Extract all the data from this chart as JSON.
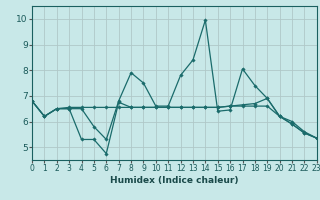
{
  "title": "",
  "xlabel": "Humidex (Indice chaleur)",
  "xlim": [
    0,
    23
  ],
  "ylim": [
    4.5,
    10.5
  ],
  "xticks": [
    0,
    1,
    2,
    3,
    4,
    5,
    6,
    7,
    8,
    9,
    10,
    11,
    12,
    13,
    14,
    15,
    16,
    17,
    18,
    19,
    20,
    21,
    22,
    23
  ],
  "yticks": [
    5,
    6,
    7,
    8,
    9,
    10
  ],
  "background_color": "#c8e8e8",
  "grid_color": "#b0c8c8",
  "line_color": "#1a6b6b",
  "lines": [
    {
      "x": [
        0,
        1,
        2,
        3,
        4,
        5,
        6,
        7,
        8,
        9,
        10,
        11,
        12,
        13,
        14,
        15,
        16,
        17,
        18,
        19,
        20,
        21,
        22,
        23
      ],
      "y": [
        6.8,
        6.2,
        6.5,
        6.5,
        6.5,
        5.8,
        5.3,
        6.8,
        7.9,
        7.5,
        6.6,
        6.6,
        7.8,
        8.4,
        9.95,
        6.4,
        6.45,
        8.05,
        7.4,
        6.9,
        6.2,
        6.0,
        5.6,
        5.35
      ]
    },
    {
      "x": [
        0,
        1,
        2,
        3,
        4,
        5,
        6,
        7,
        8,
        9,
        10,
        11,
        12,
        13,
        14,
        15,
        16,
        17,
        18,
        19,
        20,
        21,
        22,
        23
      ],
      "y": [
        6.8,
        6.2,
        6.5,
        6.5,
        5.3,
        5.3,
        4.75,
        6.75,
        6.55,
        6.55,
        6.55,
        6.55,
        6.55,
        6.55,
        6.55,
        6.55,
        6.6,
        6.6,
        6.6,
        6.6,
        6.2,
        5.9,
        5.55,
        5.35
      ]
    },
    {
      "x": [
        0,
        1,
        2,
        3,
        4,
        5,
        6,
        7,
        8,
        9,
        10,
        11,
        12,
        13,
        14,
        15,
        16,
        17,
        18,
        19,
        20,
        21,
        22,
        23
      ],
      "y": [
        6.8,
        6.2,
        6.5,
        6.55,
        6.55,
        6.55,
        6.55,
        6.55,
        6.55,
        6.55,
        6.55,
        6.55,
        6.55,
        6.55,
        6.55,
        6.55,
        6.6,
        6.65,
        6.7,
        6.9,
        6.2,
        5.9,
        5.55,
        5.35
      ]
    }
  ]
}
